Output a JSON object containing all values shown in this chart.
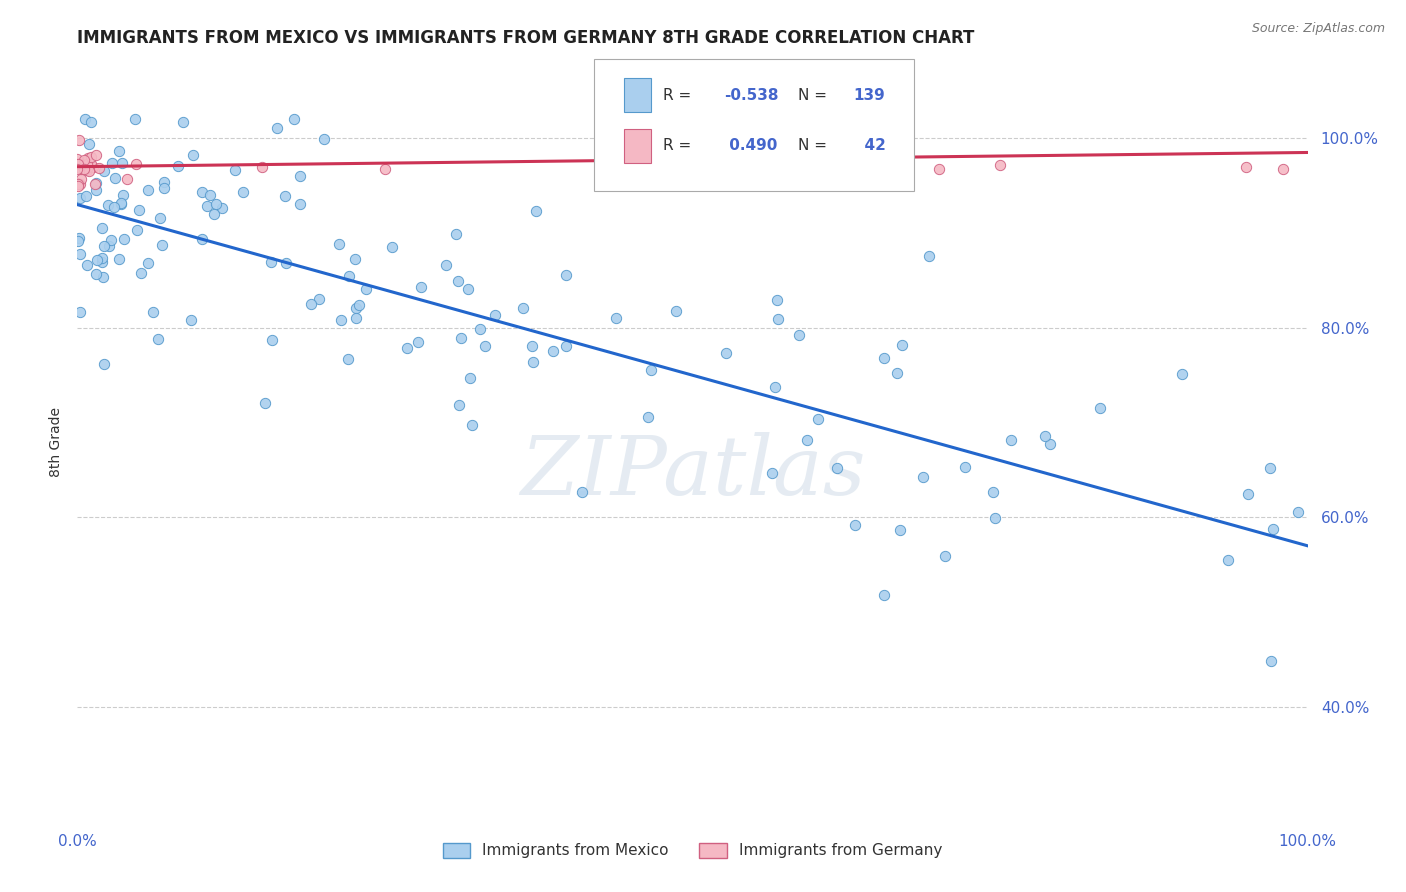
{
  "title": "IMMIGRANTS FROM MEXICO VS IMMIGRANTS FROM GERMANY 8TH GRADE CORRELATION CHART",
  "source": "Source: ZipAtlas.com",
  "ylabel": "8th Grade",
  "mexico_color": "#aacfee",
  "mexico_edge_color": "#5599cc",
  "germany_color": "#f5b8c4",
  "germany_edge_color": "#d06080",
  "trend_mexico_color": "#2266cc",
  "trend_germany_color": "#cc3355",
  "legend_R_mexico": "-0.538",
  "legend_N_mexico": "139",
  "legend_R_germany": "0.490",
  "legend_N_germany": "42",
  "legend_label_mexico": "Immigrants from Mexico",
  "legend_label_germany": "Immigrants from Germany",
  "watermark": "ZIPatlas",
  "tick_color": "#4466cc",
  "grid_color": "#cccccc",
  "xlim": [
    0.0,
    1.0
  ],
  "ylim": [
    0.28,
    1.08
  ],
  "yticks": [
    0.4,
    0.6,
    0.8,
    1.0
  ],
  "ytick_labels": [
    "40.0%",
    "60.0%",
    "80.0%",
    "100.0%"
  ],
  "xticks": [
    0.0,
    1.0
  ],
  "xtick_labels": [
    "0.0%",
    "100.0%"
  ],
  "mexico_trend_x": [
    0.0,
    1.0
  ],
  "mexico_trend_y": [
    0.93,
    0.57
  ],
  "germany_trend_x": [
    0.0,
    1.0
  ],
  "germany_trend_y": [
    0.97,
    0.985
  ]
}
